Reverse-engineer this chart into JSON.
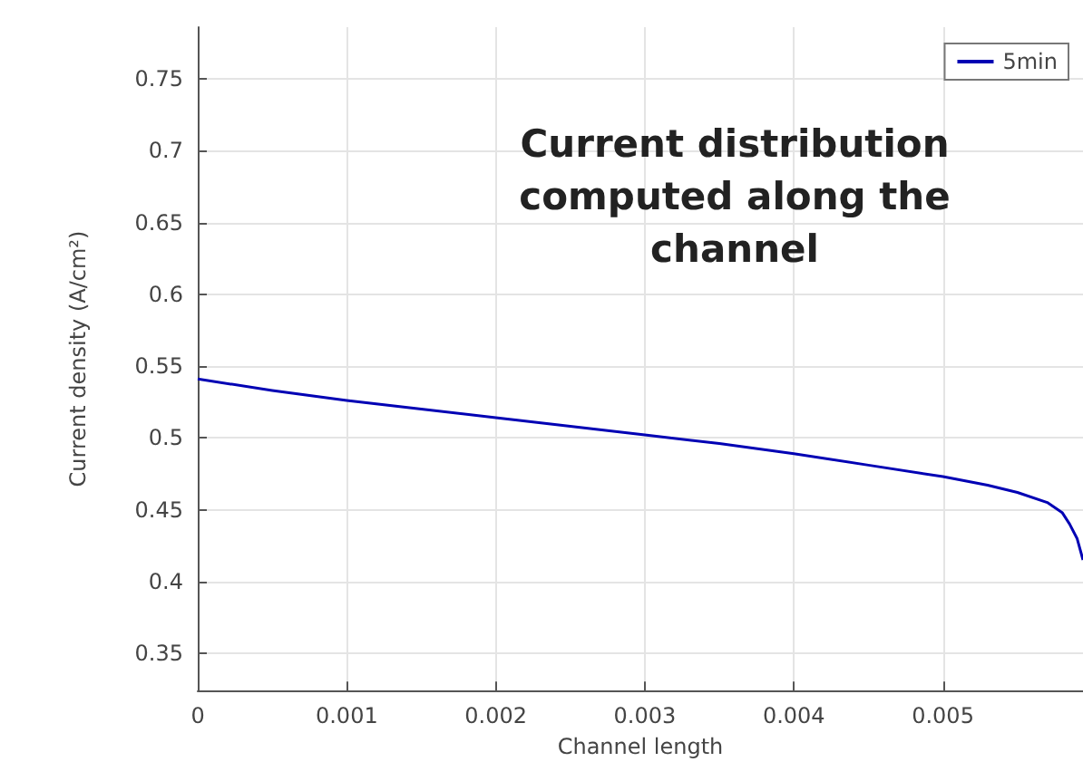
{
  "chart_data": {
    "type": "line",
    "title": "Current distribution\ncomputed along the\nchannel",
    "xlabel": "Channel length",
    "ylabel": "Current density (A/cm²)",
    "x": [
      0,
      0.0005,
      0.001,
      0.0015,
      0.002,
      0.0025,
      0.003,
      0.0035,
      0.004,
      0.0045,
      0.005,
      0.0053,
      0.0055,
      0.0057,
      0.0058,
      0.00585,
      0.0059,
      0.00594
    ],
    "series": [
      {
        "name": "5min",
        "color": "#0000b4",
        "values": [
          0.541,
          0.533,
          0.526,
          0.52,
          0.514,
          0.508,
          0.502,
          0.496,
          0.489,
          0.481,
          0.473,
          0.467,
          0.462,
          0.455,
          0.448,
          0.44,
          0.43,
          0.415
        ]
      }
    ],
    "xlim": [
      0,
      0.00594
    ],
    "ylim": [
      0.324,
      0.786
    ],
    "xticks": [
      0,
      0.001,
      0.002,
      0.003,
      0.004,
      0.005
    ],
    "yticks": [
      0.35,
      0.4,
      0.45,
      0.5,
      0.55,
      0.6,
      0.65,
      0.7,
      0.75
    ],
    "grid": true,
    "legend": "top right",
    "marker": "none",
    "line_style": "solid"
  }
}
